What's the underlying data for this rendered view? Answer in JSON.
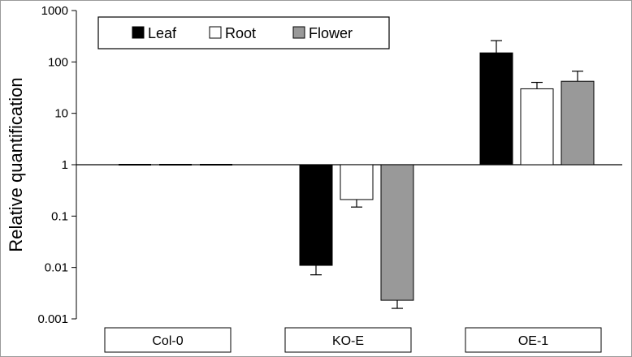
{
  "chart_data": {
    "type": "bar",
    "scale": "log",
    "ylabel": "Relative quantification",
    "ylim": [
      0.001,
      1000
    ],
    "yticks": [
      "0.001",
      "0.01",
      "0.1",
      "1",
      "10",
      "100",
      "1000"
    ],
    "categories": [
      "Col-0",
      "KO-E",
      "OE-1"
    ],
    "series": [
      {
        "name": "Leaf",
        "color": "#000000",
        "values": [
          1,
          0.011,
          150
        ],
        "errors_upper": [
          1,
          0.0072,
          260
        ]
      },
      {
        "name": "Root",
        "color": "#ffffff",
        "values": [
          1,
          0.21,
          30
        ],
        "errors_upper": [
          1,
          0.15,
          40
        ]
      },
      {
        "name": "Flower",
        "color": "#999999",
        "values": [
          1,
          0.0023,
          42
        ],
        "errors_upper": [
          1,
          0.0016,
          66
        ]
      }
    ],
    "legend_position": "top-left",
    "grid": false
  }
}
